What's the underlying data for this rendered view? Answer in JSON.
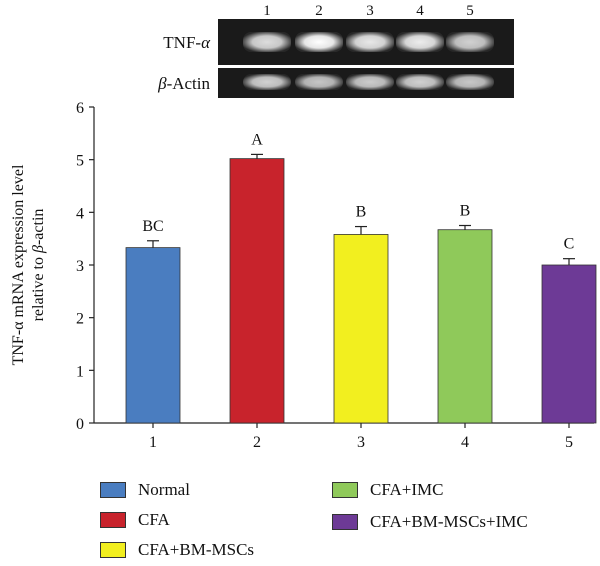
{
  "gel": {
    "lanes": [
      "1",
      "2",
      "3",
      "4",
      "5"
    ],
    "rows": [
      {
        "label_prefix": "TNF-",
        "label_symbol": "α",
        "intensities": [
          0.85,
          1.0,
          0.9,
          0.92,
          0.8
        ]
      },
      {
        "label_prefix": "",
        "label_symbol": "β",
        "label_suffix": "-Actin",
        "intensities": [
          0.8,
          0.75,
          0.78,
          0.8,
          0.76
        ]
      }
    ]
  },
  "chart_data": {
    "type": "bar",
    "categories": [
      "1",
      "2",
      "3",
      "4",
      "5"
    ],
    "values": [
      3.33,
      5.02,
      3.58,
      3.67,
      3.0
    ],
    "errors": [
      0.13,
      0.08,
      0.15,
      0.08,
      0.12
    ],
    "significance": [
      "BC",
      "A",
      "B",
      "B",
      "C"
    ],
    "colors": [
      "#4a7dc0",
      "#c8232c",
      "#f2ef1f",
      "#8fc95a",
      "#6d3a96"
    ],
    "ylim": [
      0,
      6
    ],
    "yticks": [
      0,
      1,
      2,
      3,
      4,
      5,
      6
    ],
    "ylabel_line1": "TNF-α mRNA expression level",
    "ylabel_line2_prefix": "relative to ",
    "ylabel_line2_symbol": "β",
    "ylabel_line2_suffix": "-actin",
    "xlabel": "",
    "title": ""
  },
  "legend": [
    {
      "label": "Normal",
      "color": "#4a7dc0"
    },
    {
      "label": "CFA",
      "color": "#c8232c"
    },
    {
      "label": "CFA+BM-MSCs",
      "color": "#f2ef1f"
    },
    {
      "label": "CFA+IMC",
      "color": "#8fc95a"
    },
    {
      "label": "CFA+BM-MSCs+IMC",
      "color": "#6d3a96"
    }
  ]
}
